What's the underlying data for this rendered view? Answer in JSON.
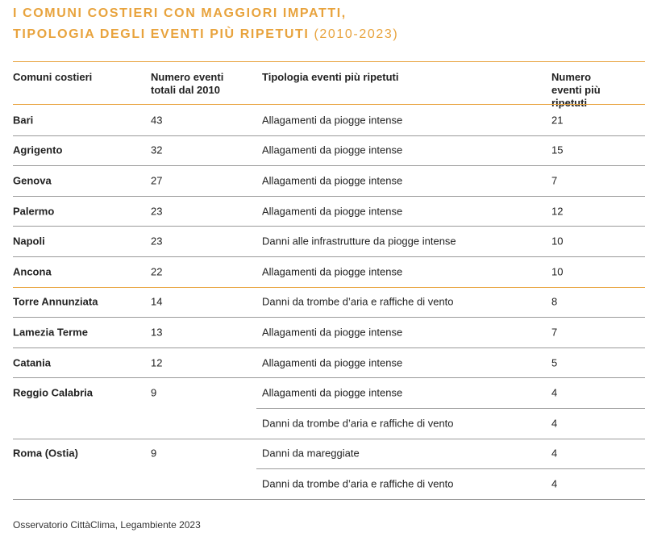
{
  "header": {
    "title_line1": "I COMUNI COSTIERI CON MAGGIORI IMPATTI,",
    "title_line2": "TIPOLOGIA DEGLI EVENTI PIÙ RIPETUTI",
    "period": "(2010-2023)"
  },
  "table": {
    "columns": [
      "Comuni costieri",
      "Numero eventi totali dal 2010",
      "Tipologia eventi più ripetuti",
      "Numero eventi più ripetuti"
    ],
    "rows": [
      {
        "comune": "Bari",
        "totale": 43,
        "eventi": [
          {
            "tipo": "Allagamenti da piogge intense",
            "numero": 21
          }
        ]
      },
      {
        "comune": "Agrigento",
        "totale": 32,
        "eventi": [
          {
            "tipo": "Allagamenti da piogge intense",
            "numero": 15
          }
        ]
      },
      {
        "comune": "Genova",
        "totale": 27,
        "eventi": [
          {
            "tipo": "Allagamenti da piogge intense",
            "numero": 7
          }
        ]
      },
      {
        "comune": "Palermo",
        "totale": 23,
        "eventi": [
          {
            "tipo": "Allagamenti da piogge intense",
            "numero": 12
          }
        ]
      },
      {
        "comune": "Napoli",
        "totale": 23,
        "eventi": [
          {
            "tipo": "Danni alle infrastrutture da piogge intense",
            "numero": 10
          }
        ]
      },
      {
        "comune": "Ancona",
        "totale": 22,
        "eventi": [
          {
            "tipo": "Allagamenti da piogge intense",
            "numero": 10
          }
        ]
      },
      {
        "comune": "Torre Annunziata",
        "totale": 14,
        "eventi": [
          {
            "tipo": "Danni da trombe d’aria e raffiche di vento",
            "numero": 8
          }
        ]
      },
      {
        "comune": "Lamezia Terme",
        "totale": 13,
        "eventi": [
          {
            "tipo": "Allagamenti da piogge intense",
            "numero": 7
          }
        ]
      },
      {
        "comune": "Catania",
        "totale": 12,
        "eventi": [
          {
            "tipo": "Allagamenti da piogge intense",
            "numero": 5
          }
        ]
      },
      {
        "comune": "Reggio Calabria",
        "totale": 9,
        "eventi": [
          {
            "tipo": "Allagamenti da piogge intense",
            "numero": 4
          },
          {
            "tipo": "Danni da trombe d’aria e raffiche di vento",
            "numero": 4
          }
        ]
      },
      {
        "comune": "Roma (Ostia)",
        "totale": 9,
        "eventi": [
          {
            "tipo": "Danni da mareggiate",
            "numero": 4
          },
          {
            "tipo": "Danni da trombe d’aria e raffiche di vento",
            "numero": 4
          }
        ]
      }
    ]
  },
  "footer": {
    "source": "Osservatorio CittàClima, Legambiente 2023"
  }
}
